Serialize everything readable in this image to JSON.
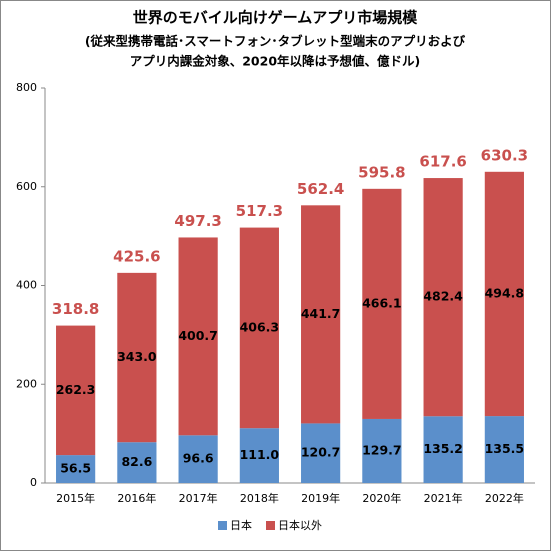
{
  "chart_data": {
    "type": "stacked-bar",
    "title": "世界のモバイル向けゲームアプリ市場規模",
    "subtitle": [
      "(従来型携帯電話･スマートフォン･タブレット型端末のアプリおよび",
      "アプリ内課金対象、2020年以降は予想値、億ドル)"
    ],
    "categories": [
      "2015年",
      "2016年",
      "2017年",
      "2018年",
      "2019年",
      "2020年",
      "2021年",
      "2022年"
    ],
    "series": [
      {
        "name": "日本",
        "color": "#5b8fcb",
        "values": [
          56.5,
          82.6,
          96.6,
          111.0,
          120.7,
          129.7,
          135.2,
          135.5
        ],
        "value_labels": [
          "56.5",
          "82.6",
          "96.6",
          "111.0",
          "120.7",
          "129.7",
          "135.2",
          "135.5"
        ]
      },
      {
        "name": "日本以外",
        "color": "#c9504e",
        "values": [
          262.3,
          343.0,
          400.7,
          406.3,
          441.7,
          466.1,
          482.4,
          494.8
        ],
        "value_labels": [
          "262.3",
          "343.0",
          "400.7",
          "406.3",
          "441.7",
          "466.1",
          "482.4",
          "494.8"
        ]
      }
    ],
    "totals": [
      318.8,
      425.6,
      497.3,
      517.3,
      562.4,
      595.8,
      617.6,
      630.3
    ],
    "total_color": "#c9504e",
    "ylim": [
      0,
      800
    ],
    "yticks": [
      0,
      200,
      400,
      600,
      800
    ],
    "grid": false,
    "legend": "bottom"
  }
}
